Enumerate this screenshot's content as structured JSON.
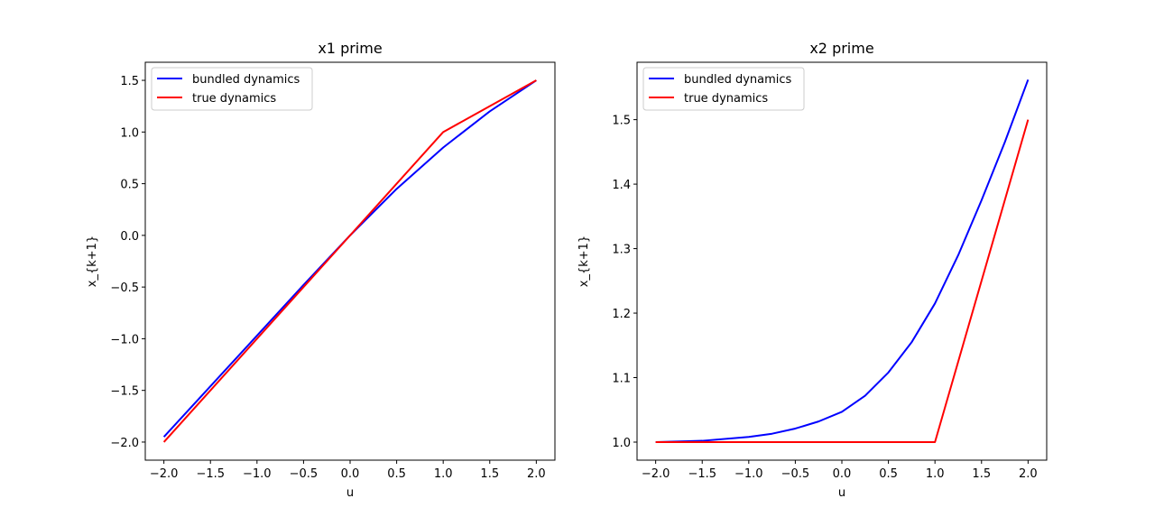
{
  "chart_data": [
    {
      "type": "line",
      "title": "x1 prime",
      "xlabel": "u",
      "ylabel": "x_{k+1}",
      "xlim": [
        -2.2,
        2.2
      ],
      "ylim": [
        -2.175,
        1.675
      ],
      "xticks": [
        -2.0,
        -1.5,
        -1.0,
        -0.5,
        0.0,
        0.5,
        1.0,
        1.5,
        2.0
      ],
      "xtick_labels": [
        "−2.0",
        "−1.5",
        "−1.0",
        "−0.5",
        "0.0",
        "0.5",
        "1.0",
        "1.5",
        "2.0"
      ],
      "yticks": [
        -2.0,
        -1.5,
        -1.0,
        -0.5,
        0.0,
        0.5,
        1.0,
        1.5
      ],
      "ytick_labels": [
        "−2.0",
        "−1.5",
        "−1.0",
        "−0.5",
        "0.0",
        "0.5",
        "1.0",
        "1.5"
      ],
      "grid": false,
      "legend_position": "upper-left",
      "series": [
        {
          "name": "bundled dynamics",
          "color": "#0000ff",
          "x": [
            -2.0,
            -1.5,
            -1.0,
            -0.5,
            0.0,
            0.5,
            1.0,
            1.5,
            2.0
          ],
          "y": [
            -1.95,
            -1.46,
            -0.97,
            -0.48,
            0.0,
            0.45,
            0.85,
            1.2,
            1.5
          ]
        },
        {
          "name": "true dynamics",
          "color": "#ff0000",
          "x": [
            -2.0,
            1.0,
            2.0
          ],
          "y": [
            -2.0,
            1.0,
            1.5
          ]
        }
      ]
    },
    {
      "type": "line",
      "title": "x2 prime",
      "xlabel": "u",
      "ylabel": "x_{k+1}",
      "xlim": [
        -2.2,
        2.2
      ],
      "ylim": [
        0.972,
        1.589
      ],
      "xticks": [
        -2.0,
        -1.5,
        -1.0,
        -0.5,
        0.0,
        0.5,
        1.0,
        1.5,
        2.0
      ],
      "xtick_labels": [
        "−2.0",
        "−1.5",
        "−1.0",
        "−0.5",
        "0.0",
        "0.5",
        "1.0",
        "1.5",
        "2.0"
      ],
      "yticks": [
        1.0,
        1.1,
        1.2,
        1.3,
        1.4,
        1.5
      ],
      "ytick_labels": [
        "1.0",
        "1.1",
        "1.2",
        "1.3",
        "1.4",
        "1.5"
      ],
      "grid": false,
      "legend_position": "upper-left",
      "series": [
        {
          "name": "bundled dynamics",
          "color": "#0000ff",
          "x": [
            -2.0,
            -1.5,
            -1.0,
            -0.75,
            -0.5,
            -0.25,
            0.0,
            0.25,
            0.5,
            0.75,
            1.0,
            1.25,
            1.5,
            1.75,
            2.0
          ],
          "y": [
            1.0,
            1.002,
            1.008,
            1.013,
            1.021,
            1.032,
            1.047,
            1.072,
            1.108,
            1.155,
            1.215,
            1.29,
            1.375,
            1.465,
            1.562
          ]
        },
        {
          "name": "true dynamics",
          "color": "#ff0000",
          "x": [
            -2.0,
            1.0,
            2.0
          ],
          "y": [
            1.0,
            1.0,
            1.5
          ]
        }
      ]
    }
  ]
}
